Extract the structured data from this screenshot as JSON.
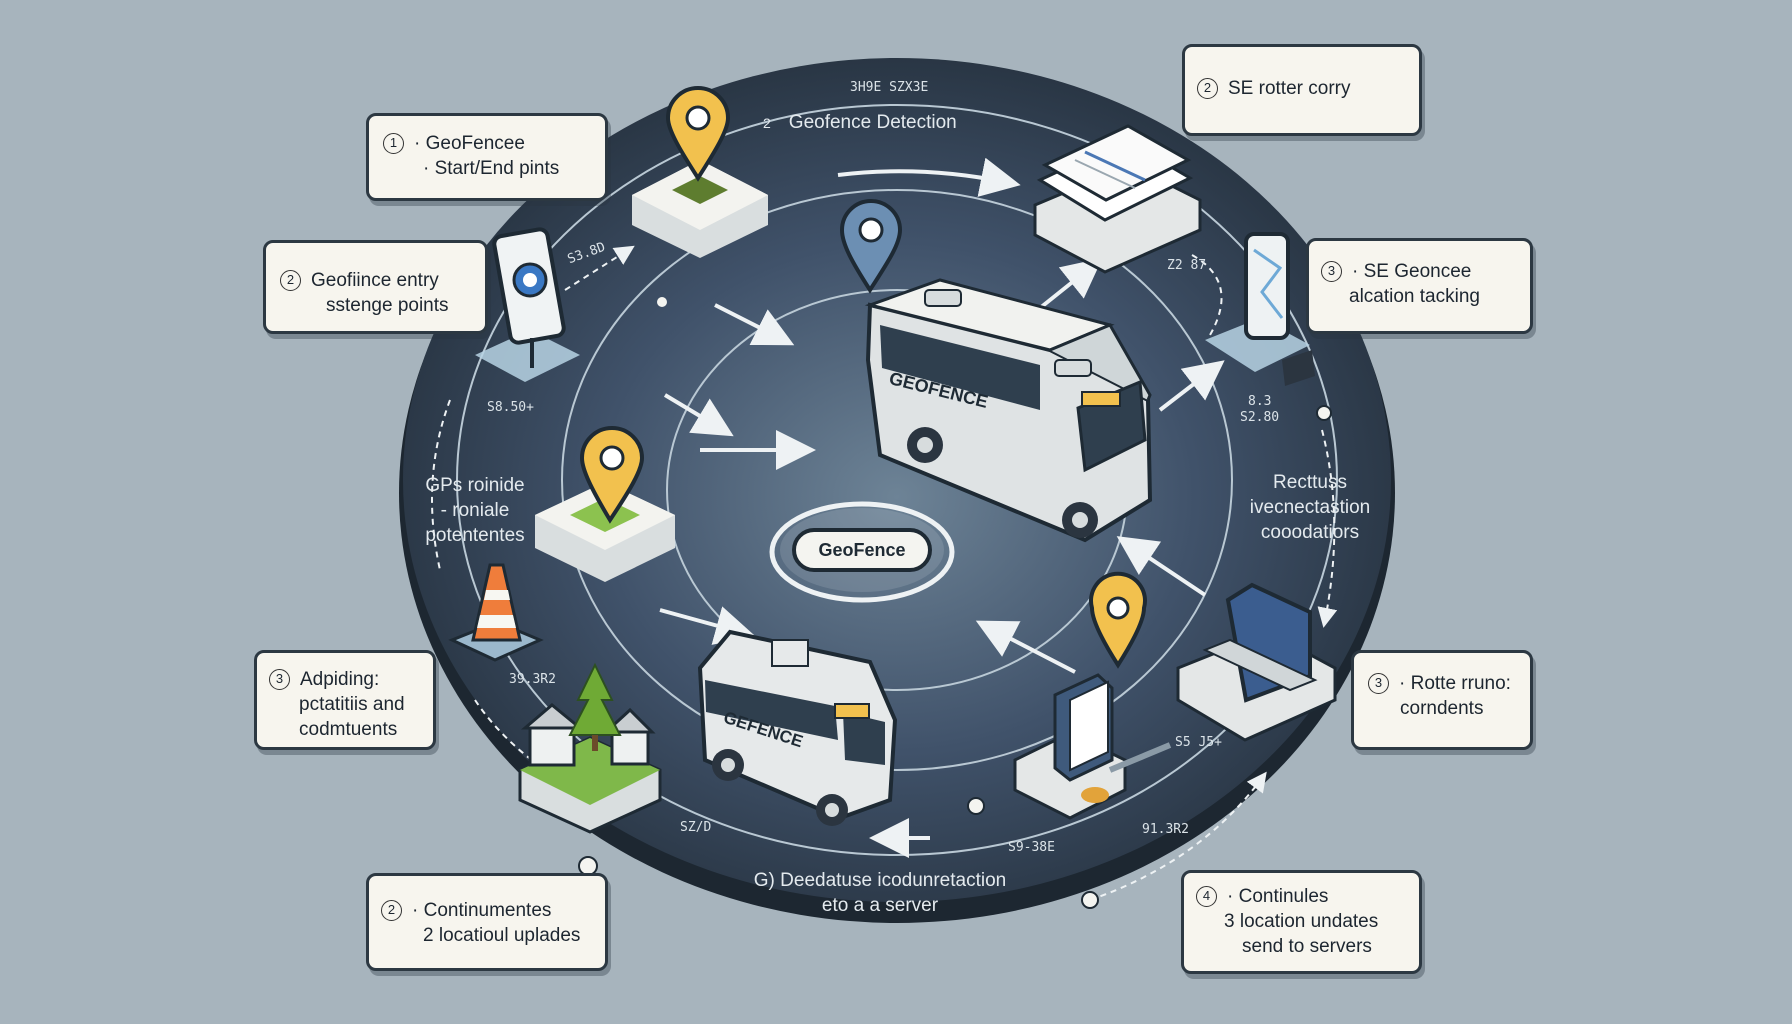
{
  "center_label": "GeoFence",
  "bus_main_label": "GEOFENCE",
  "bus_small_label": "GEFENCE",
  "top_label": {
    "num": "2",
    "text": "Geofence Detection"
  },
  "inner_labels": {
    "left_lines": [
      "GPs roinide",
      "- roniale",
      "potententes"
    ],
    "right_lines": [
      "Recttuss",
      "ivecnectastion",
      "cooodatiors"
    ],
    "bottom_lines": [
      "G) Deedatuse icodunretaction",
      "eto a a server"
    ]
  },
  "callouts": [
    {
      "num": "1",
      "lines": [
        "· GeoFencee",
        "· Start/End pints"
      ]
    },
    {
      "num": "2",
      "lines": [
        "Geofiince entry",
        "sstenge points"
      ]
    },
    {
      "num": "3",
      "lines": [
        "Adpiding:",
        "pctatitiis and",
        "codmtuents"
      ]
    },
    {
      "num": "2",
      "lines": [
        "· Continumentes",
        "2 locatioul uplades"
      ]
    },
    {
      "num": "2",
      "lines": [
        "SE rotter corry"
      ]
    },
    {
      "num": "3",
      "lines": [
        "· SE Geoncee",
        "alcation tacking"
      ]
    },
    {
      "num": "3",
      "lines": [
        "· Rotte rruno:",
        "corndents"
      ]
    },
    {
      "num": "4",
      "lines": [
        "· Continules",
        "3 location undates",
        "send to servers"
      ]
    }
  ],
  "tiny_labels": [
    "3H9E  SZX3E",
    "S3.8D",
    "Z2 87",
    "S8.50+",
    "8.3",
    "S2.80",
    "39.3R2",
    "SZ/D",
    "S9-38E",
    "S5 J5+",
    "91.3R2"
  ],
  "colors": {
    "background": "#a7b4bd",
    "disk": "#2f3d4a",
    "pin": "#f2c14e",
    "grass": "#7fb84a",
    "text_light": "#e4eaee"
  }
}
